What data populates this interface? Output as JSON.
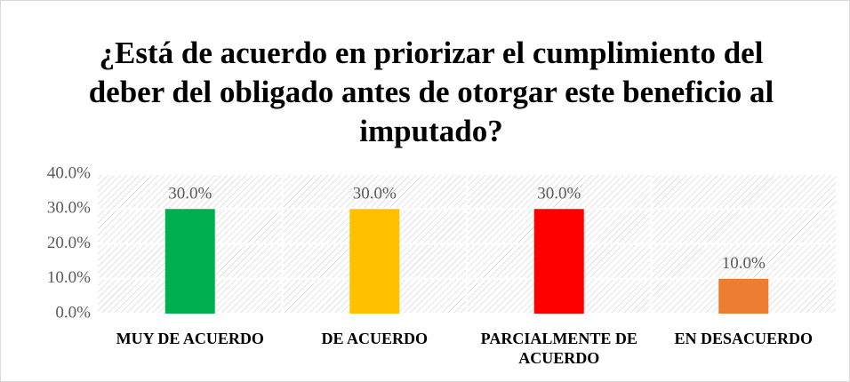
{
  "chart_data": {
    "type": "bar",
    "title": "¿Está de acuerdo en priorizar el cumplimiento del deber del obligado antes de otorgar este beneficio al imputado?",
    "categories": [
      "MUY DE ACUERDO",
      "DE ACUERDO",
      "PARCIALMENTE DE ACUERDO",
      "EN DESACUERDO"
    ],
    "values": [
      30,
      30,
      30,
      10
    ],
    "value_labels": [
      "30.0%",
      "30.0%",
      "30.0%",
      "10.0%"
    ],
    "colors": [
      "#00b050",
      "#ffc000",
      "#ff0000",
      "#ed7d31"
    ],
    "ylim": [
      0,
      40
    ],
    "yticks": [
      {
        "value": 0,
        "label": "0.0%"
      },
      {
        "value": 10,
        "label": "10.0%"
      },
      {
        "value": 20,
        "label": "20.0%"
      },
      {
        "value": 30,
        "label": "30.0%"
      },
      {
        "value": 40,
        "label": "40.0%"
      }
    ]
  }
}
